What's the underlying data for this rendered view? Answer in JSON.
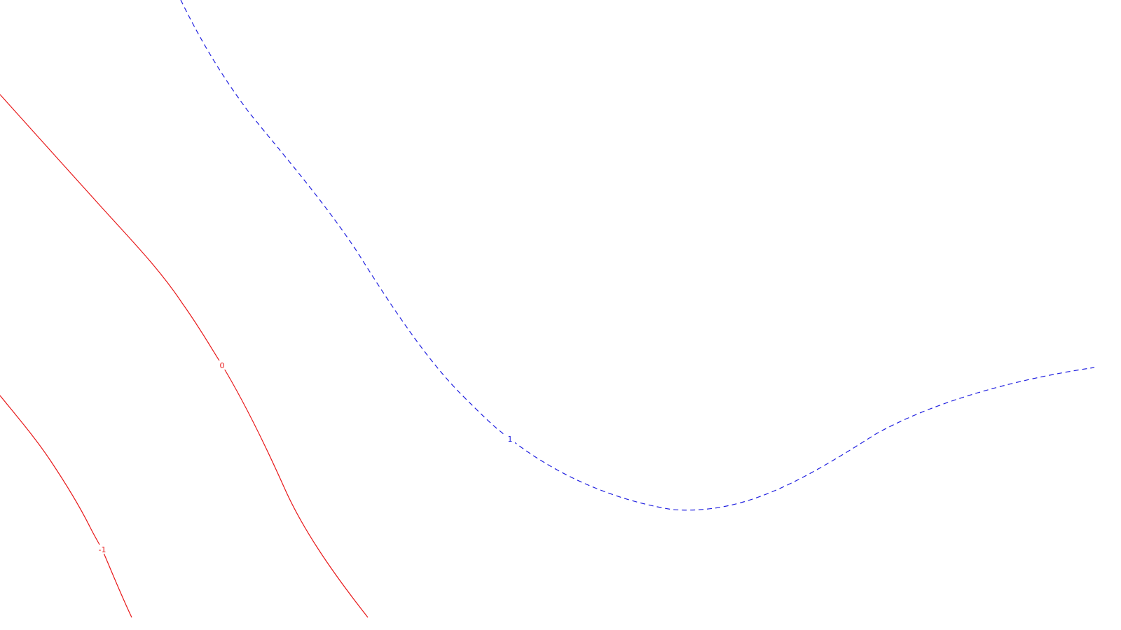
{
  "contours": [
    {
      "id": "contour-minus-1",
      "label": "-1",
      "color": "#e8191a",
      "style": "solid"
    },
    {
      "id": "contour-0",
      "label": "0",
      "color": "#e8191a",
      "style": "solid"
    },
    {
      "id": "contour-1",
      "label": "1",
      "color": "#2020e0",
      "style": "dashed"
    }
  ]
}
